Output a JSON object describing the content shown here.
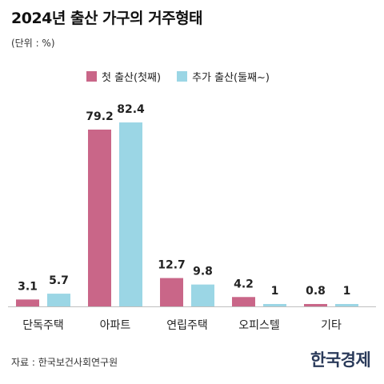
{
  "title": "2024년 출산 가구의 거주형태",
  "unit": "(단위 : %)",
  "source": "자료 : 한국보건사회연구원",
  "logo": "한국경제",
  "colors": {
    "first": "#c96688",
    "additional": "#9bd6e5",
    "axis": "#bfbfbf"
  },
  "chart_data": {
    "type": "bar",
    "title": "2024년 출산 가구의 거주형태",
    "xlabel": "",
    "ylabel": "",
    "unit": "%",
    "categories": [
      "단독주택",
      "아파트",
      "연립주택",
      "오피스텔",
      "기타"
    ],
    "series": [
      {
        "name": "첫 출산(첫째)",
        "values": [
          3.1,
          79.2,
          12.7,
          4.2,
          0.8
        ],
        "labels": [
          "3.1",
          "79.2",
          "12.7",
          "4.2",
          "0.8"
        ]
      },
      {
        "name": "추가 출산(둘째~)",
        "values": [
          5.7,
          82.4,
          9.8,
          1,
          1
        ],
        "labels": [
          "5.7",
          "82.4",
          "9.8",
          "1",
          "1"
        ]
      }
    ],
    "ylim": [
      0,
      100
    ],
    "grid": false,
    "legend": "top"
  }
}
